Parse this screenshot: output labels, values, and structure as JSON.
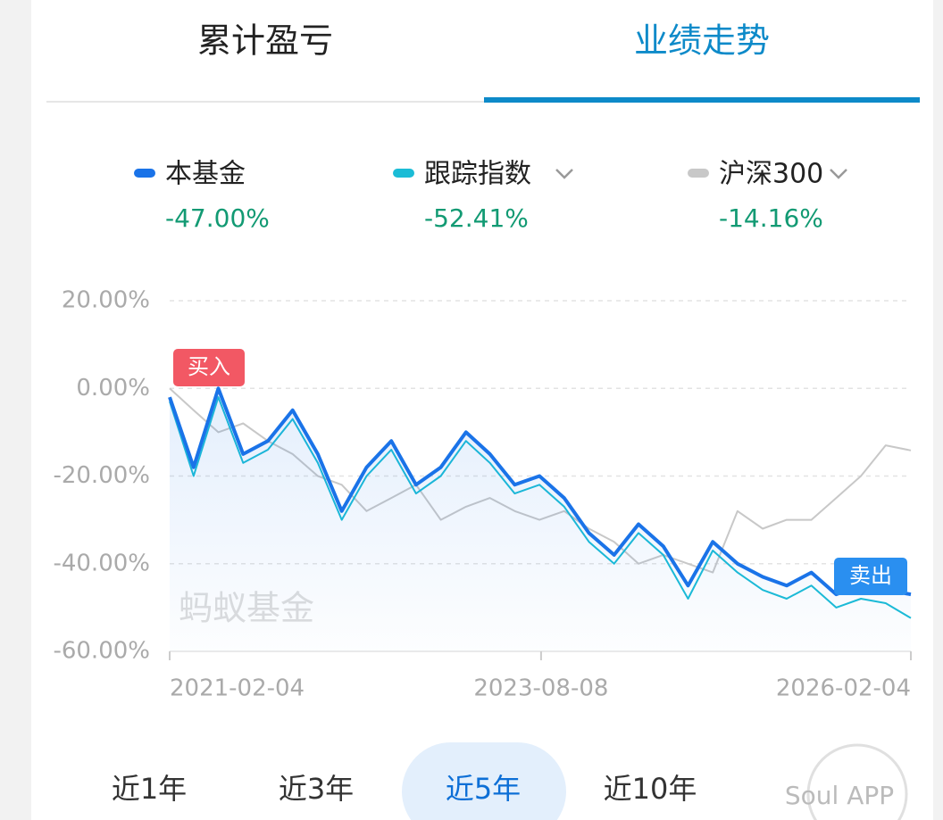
{
  "tabs": [
    "累计盈亏",
    "业绩走势"
  ],
  "returns": [
    "-47.00%",
    "-52.41%",
    "-14.16%"
  ],
  "annotations": [
    "买入",
    "卖出"
  ],
  "watermarks": [
    "蚂蚁基金",
    "Soul APP"
  ],
  "periods": [
    "近1年",
    "近3年",
    "近5年",
    "近10年"
  ],
  "chart_data": {
    "type": "line",
    "x": [
      "2021-02-04",
      "2021-04-04",
      "2021-06-04",
      "2021-08-04",
      "2021-10-04",
      "2021-12-04",
      "2022-02-04",
      "2022-04-04",
      "2022-06-04",
      "2022-08-04",
      "2022-10-04",
      "2022-12-04",
      "2023-02-04",
      "2023-04-04",
      "2023-06-04",
      "2023-08-04",
      "2023-10-04",
      "2023-12-04",
      "2024-02-04",
      "2024-04-04",
      "2024-06-04",
      "2024-08-04",
      "2024-10-04",
      "2024-12-04",
      "2025-02-04",
      "2025-04-04",
      "2025-06-04",
      "2025-08-04",
      "2025-10-04",
      "2025-12-04",
      "2026-02-04"
    ],
    "series": [
      {
        "name": "本基金",
        "color": "#1a73e8",
        "values": [
          -2,
          -18,
          0,
          -15,
          -12,
          -5,
          -15,
          -28,
          -18,
          -12,
          -22,
          -18,
          -10,
          -15,
          -22,
          -20,
          -25,
          -33,
          -38,
          -31,
          -36,
          -45,
          -35,
          -40,
          -43,
          -45,
          -42,
          -47,
          -45,
          -46,
          -47.0
        ]
      },
      {
        "name": "跟踪指数",
        "color": "#1bbcd6",
        "values": [
          -3,
          -20,
          -2,
          -17,
          -14,
          -7,
          -17,
          -30,
          -20,
          -14,
          -24,
          -20,
          -12,
          -17,
          -24,
          -22,
          -27,
          -35,
          -40,
          -33,
          -38,
          -48,
          -37,
          -42,
          -46,
          -48,
          -45,
          -50,
          -48,
          -49,
          -52.41
        ]
      },
      {
        "name": "沪深300",
        "color": "#c8c8c8",
        "values": [
          0,
          -5,
          -10,
          -8,
          -12,
          -15,
          -20,
          -22,
          -28,
          -25,
          -22,
          -30,
          -27,
          -25,
          -28,
          -30,
          -28,
          -32,
          -35,
          -40,
          -38,
          -40,
          -42,
          -28,
          -32,
          -30,
          -30,
          -25,
          -20,
          -13,
          -14.16
        ]
      }
    ],
    "xlim": [
      "2021-02-04",
      "2026-02-04"
    ],
    "xticks": [
      "2021-02-04",
      "2023-08-08",
      "2026-02-04"
    ],
    "ylim": [
      -60,
      20
    ],
    "yticks": [
      {
        "value": 20,
        "label": "20.00%"
      },
      {
        "value": 0,
        "label": "0.00%"
      },
      {
        "value": -20,
        "label": "-20.00%"
      },
      {
        "value": -40,
        "label": "-40.00%"
      },
      {
        "value": -60,
        "label": "-60.00%"
      }
    ],
    "grid": true
  }
}
